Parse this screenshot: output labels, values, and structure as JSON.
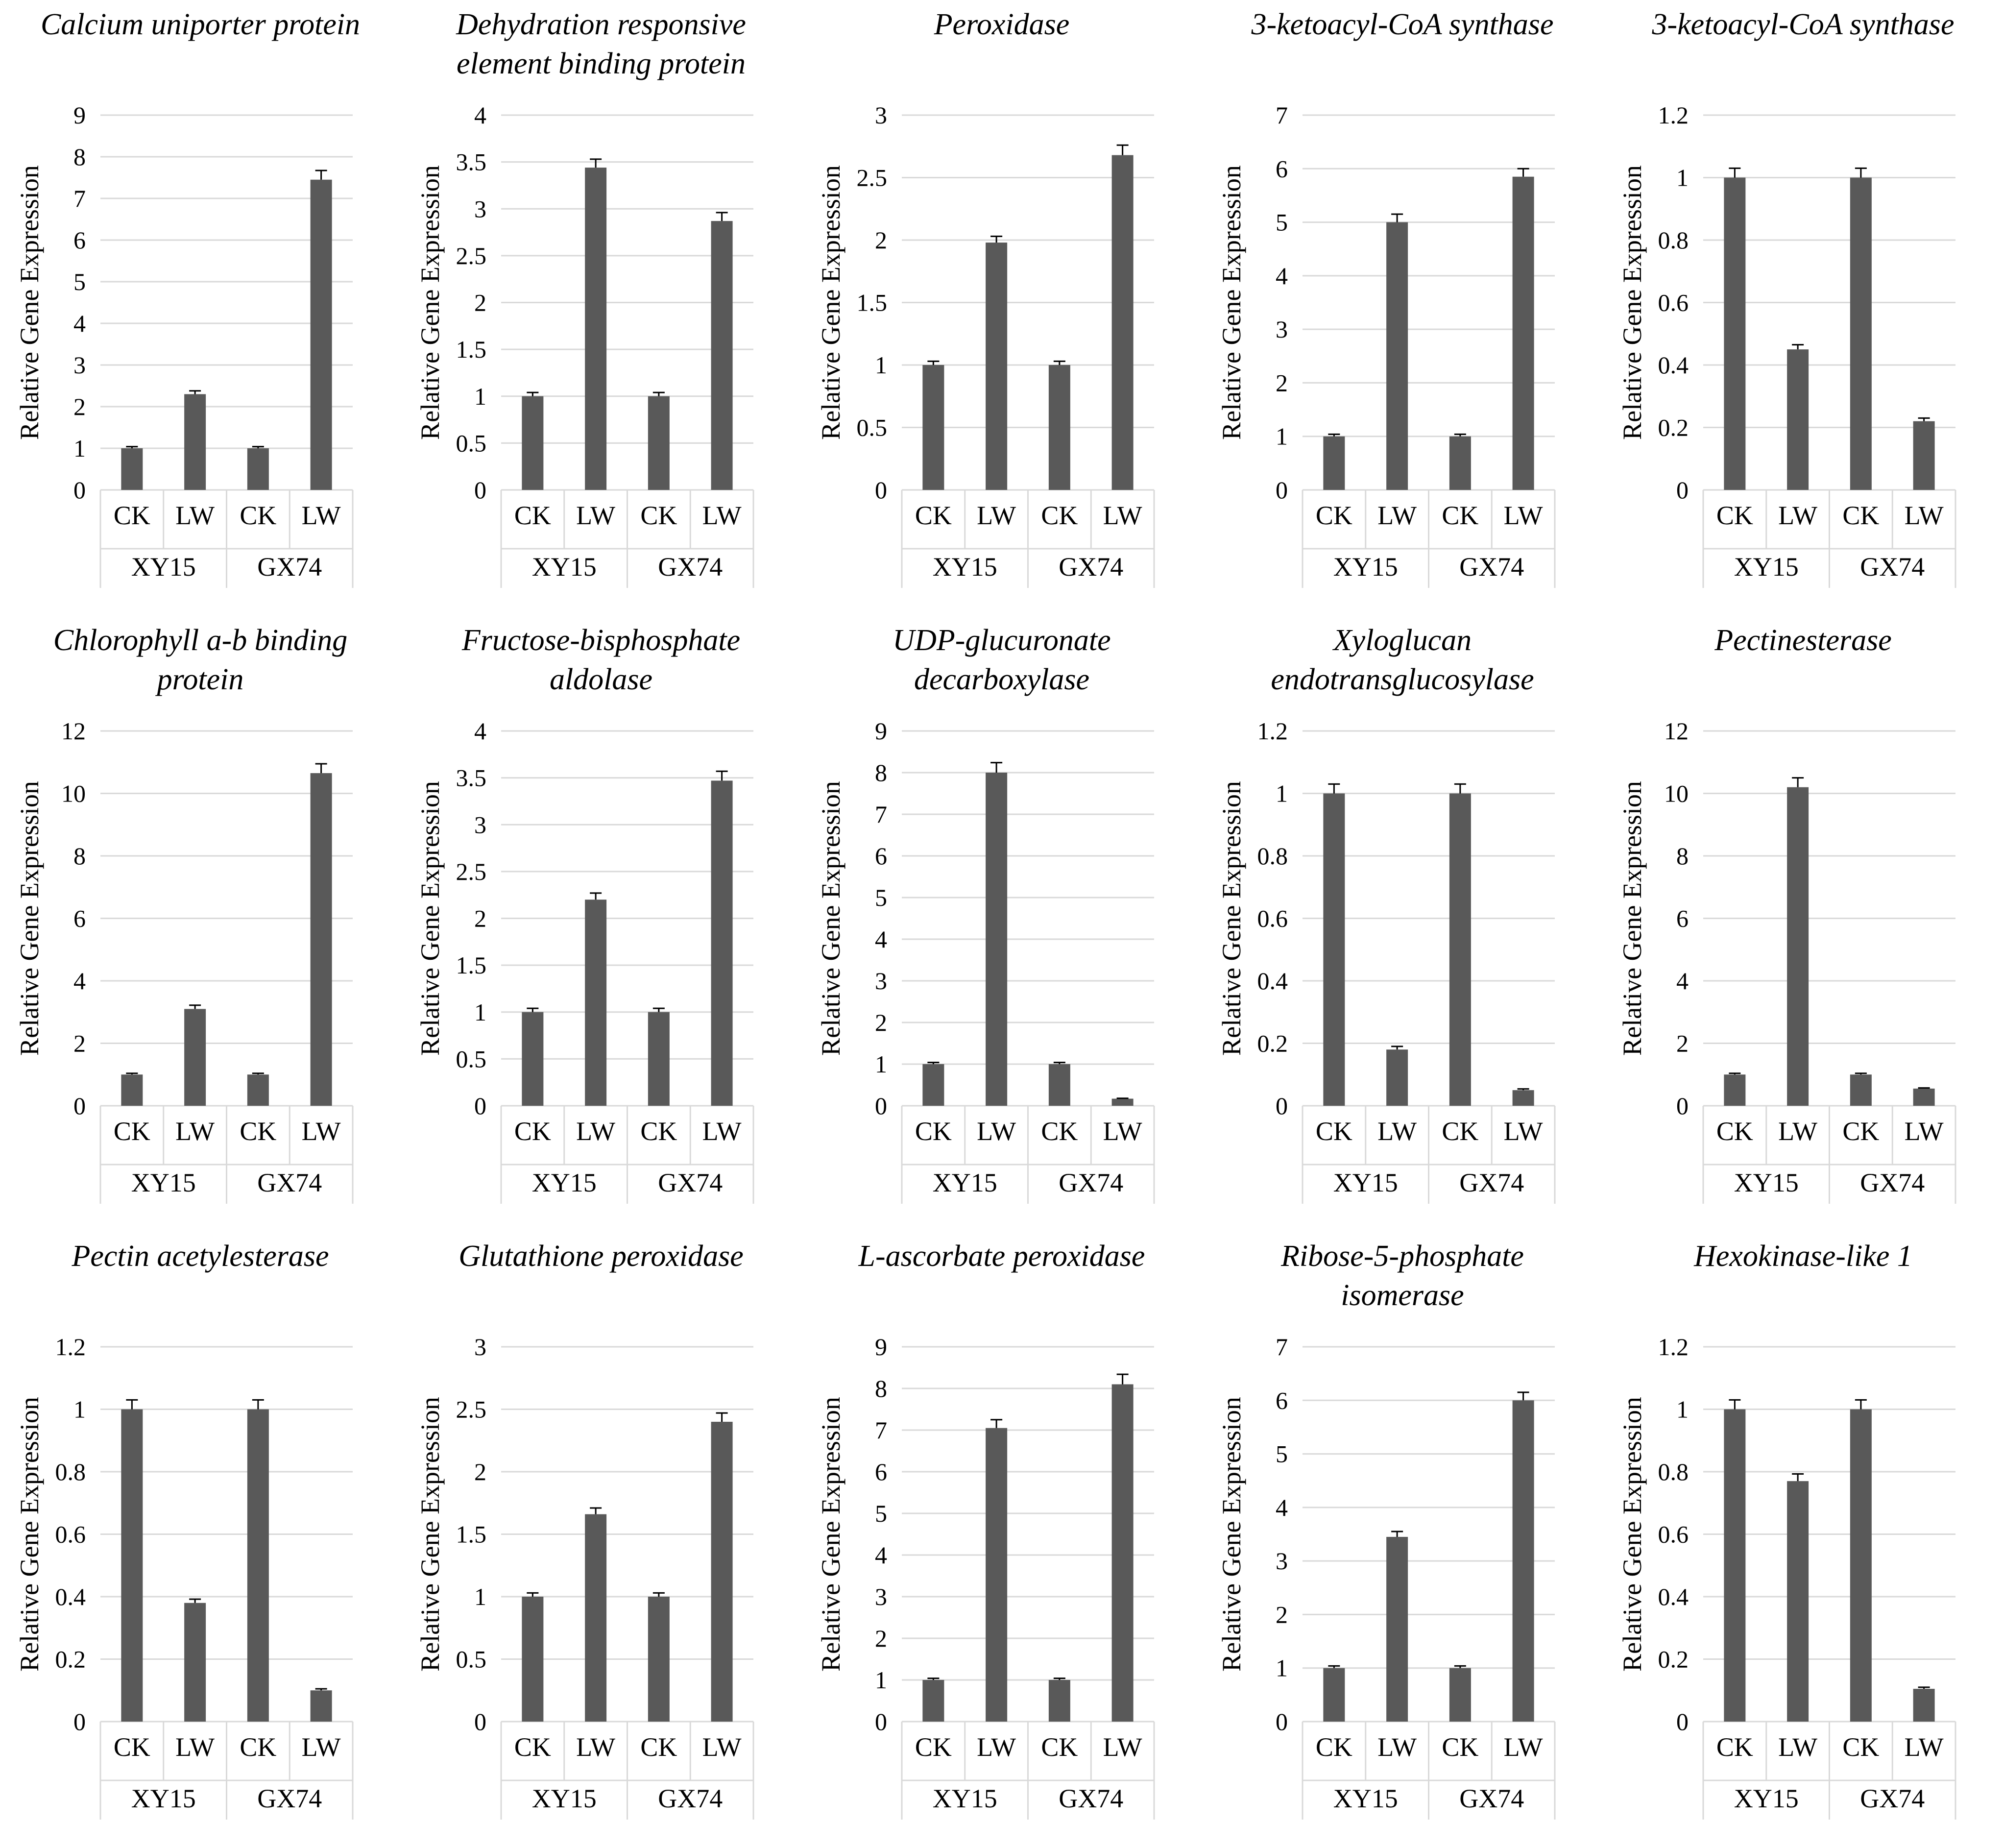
{
  "chart_data": [
    {
      "type": "bar",
      "title": "Calcium uniporter protein",
      "ylabel": "Relative Gene Expression",
      "ylim": [
        0,
        9
      ],
      "yticks": [
        0,
        1,
        2,
        3,
        4,
        5,
        6,
        7,
        8,
        9
      ],
      "groups": [
        "XY15",
        "GX74"
      ],
      "categories": [
        "CK",
        "LW",
        "CK",
        "LW"
      ],
      "values": [
        1,
        2.3,
        1,
        7.45
      ],
      "errors": [
        0.04,
        0.08,
        0.04,
        0.22
      ],
      "grid": true,
      "bar_color": "#595959"
    },
    {
      "type": "bar",
      "title": "Dehydration responsive element binding protein",
      "ylabel": "Relative Gene Expression",
      "ylim": [
        0,
        4
      ],
      "yticks": [
        0,
        0.5,
        1,
        1.5,
        2,
        2.5,
        3,
        3.5,
        4
      ],
      "groups": [
        "XY15",
        "GX74"
      ],
      "categories": [
        "CK",
        "LW",
        "CK",
        "LW"
      ],
      "values": [
        1,
        3.44,
        1,
        2.87
      ],
      "errors": [
        0.04,
        0.09,
        0.04,
        0.09
      ],
      "grid": true,
      "bar_color": "#595959"
    },
    {
      "type": "bar",
      "title": "Peroxidase",
      "ylabel": "Relative Gene Expression",
      "ylim": [
        0,
        3
      ],
      "yticks": [
        0,
        0.5,
        1,
        1.5,
        2,
        2.5,
        3
      ],
      "groups": [
        "XY15",
        "GX74"
      ],
      "categories": [
        "CK",
        "LW",
        "CK",
        "LW"
      ],
      "values": [
        1,
        1.98,
        1,
        2.68
      ],
      "errors": [
        0.03,
        0.05,
        0.03,
        0.08
      ],
      "grid": true,
      "bar_color": "#595959"
    },
    {
      "type": "bar",
      "title": "3-ketoacyl-CoA synthase",
      "ylabel": "Relative Gene Expression",
      "ylim": [
        0,
        7
      ],
      "yticks": [
        0,
        1,
        2,
        3,
        4,
        5,
        6,
        7
      ],
      "groups": [
        "XY15",
        "GX74"
      ],
      "categories": [
        "CK",
        "LW",
        "CK",
        "LW"
      ],
      "values": [
        1,
        5,
        1,
        5.85
      ],
      "errors": [
        0.04,
        0.15,
        0.04,
        0.15
      ],
      "grid": true,
      "bar_color": "#595959"
    },
    {
      "type": "bar",
      "title": "3-ketoacyl-CoA synthase",
      "ylabel": "Relative Gene Expression",
      "ylim": [
        0,
        1.2
      ],
      "yticks": [
        0,
        0.2,
        0.4,
        0.6,
        0.8,
        1,
        1.2
      ],
      "groups": [
        "XY15",
        "GX74"
      ],
      "categories": [
        "CK",
        "LW",
        "CK",
        "LW"
      ],
      "values": [
        1,
        0.45,
        1,
        0.22
      ],
      "errors": [
        0.03,
        0.015,
        0.03,
        0.01
      ],
      "grid": true,
      "bar_color": "#595959"
    },
    {
      "type": "bar",
      "title": "Chlorophyll a-b binding protein",
      "ylabel": "Relative Gene Expression",
      "ylim": [
        0,
        12
      ],
      "yticks": [
        0,
        2,
        4,
        6,
        8,
        10,
        12
      ],
      "groups": [
        "XY15",
        "GX74"
      ],
      "categories": [
        "CK",
        "LW",
        "CK",
        "LW"
      ],
      "values": [
        1,
        3.1,
        1,
        10.65
      ],
      "errors": [
        0.04,
        0.12,
        0.04,
        0.3
      ],
      "grid": true,
      "bar_color": "#595959"
    },
    {
      "type": "bar",
      "title": "Fructose-bisphosphate aldolase",
      "ylabel": "Relative Gene Expression",
      "ylim": [
        0,
        4
      ],
      "yticks": [
        0,
        0.5,
        1,
        1.5,
        2,
        2.5,
        3,
        3.5,
        4
      ],
      "groups": [
        "XY15",
        "GX74"
      ],
      "categories": [
        "CK",
        "LW",
        "CK",
        "LW"
      ],
      "values": [
        1,
        2.2,
        1,
        3.47
      ],
      "errors": [
        0.04,
        0.07,
        0.04,
        0.1
      ],
      "grid": true,
      "bar_color": "#595959"
    },
    {
      "type": "bar",
      "title": "UDP-glucuronate decarboxylase",
      "ylabel": "Relative Gene Expression",
      "ylim": [
        0,
        9
      ],
      "yticks": [
        0,
        1,
        2,
        3,
        4,
        5,
        6,
        7,
        8,
        9
      ],
      "groups": [
        "XY15",
        "GX74"
      ],
      "categories": [
        "CK",
        "LW",
        "CK",
        "LW"
      ],
      "values": [
        1,
        8,
        1,
        0.17
      ],
      "errors": [
        0.04,
        0.24,
        0.04,
        0.01
      ],
      "grid": true,
      "bar_color": "#595959"
    },
    {
      "type": "bar",
      "title": "Xyloglucan endotransglucosylase",
      "ylabel": "Relative Gene Expression",
      "ylim": [
        0,
        1.2
      ],
      "yticks": [
        0,
        0.2,
        0.4,
        0.6,
        0.8,
        1,
        1.2
      ],
      "groups": [
        "XY15",
        "GX74"
      ],
      "categories": [
        "CK",
        "LW",
        "CK",
        "LW"
      ],
      "values": [
        1,
        0.18,
        1,
        0.05
      ],
      "errors": [
        0.03,
        0.01,
        0.03,
        0.004
      ],
      "grid": true,
      "bar_color": "#595959"
    },
    {
      "type": "bar",
      "title": "Pectinesterase",
      "ylabel": "Relative Gene Expression",
      "ylim": [
        0,
        12
      ],
      "yticks": [
        0,
        2,
        4,
        6,
        8,
        10,
        12
      ],
      "groups": [
        "XY15",
        "GX74"
      ],
      "categories": [
        "CK",
        "LW",
        "CK",
        "LW"
      ],
      "values": [
        1,
        10.2,
        1,
        0.55
      ],
      "errors": [
        0.04,
        0.3,
        0.04,
        0.02
      ],
      "grid": true,
      "bar_color": "#595959"
    },
    {
      "type": "bar",
      "title": "Pectin acetylesterase",
      "ylabel": "Relative Gene Expression",
      "ylim": [
        0,
        1.2
      ],
      "yticks": [
        0,
        0.2,
        0.4,
        0.6,
        0.8,
        1,
        1.2
      ],
      "groups": [
        "XY15",
        "GX74"
      ],
      "categories": [
        "CK",
        "LW",
        "CK",
        "LW"
      ],
      "values": [
        1,
        0.38,
        1,
        0.1
      ],
      "errors": [
        0.03,
        0.012,
        0.03,
        0.005
      ],
      "grid": true,
      "bar_color": "#595959"
    },
    {
      "type": "bar",
      "title": "Glutathione peroxidase",
      "ylabel": "Relative Gene Expression",
      "ylim": [
        0,
        3
      ],
      "yticks": [
        0,
        0.5,
        1,
        1.5,
        2,
        2.5,
        3
      ],
      "groups": [
        "XY15",
        "GX74"
      ],
      "categories": [
        "CK",
        "LW",
        "CK",
        "LW"
      ],
      "values": [
        1,
        1.66,
        1,
        2.4
      ],
      "errors": [
        0.03,
        0.05,
        0.03,
        0.07
      ],
      "grid": true,
      "bar_color": "#595959"
    },
    {
      "type": "bar",
      "title": "L-ascorbate peroxidase",
      "ylabel": "Relative Gene Expression",
      "ylim": [
        0,
        9
      ],
      "yticks": [
        0,
        1,
        2,
        3,
        4,
        5,
        6,
        7,
        8,
        9
      ],
      "groups": [
        "XY15",
        "GX74"
      ],
      "categories": [
        "CK",
        "LW",
        "CK",
        "LW"
      ],
      "values": [
        1,
        7.05,
        1,
        8.1
      ],
      "errors": [
        0.04,
        0.2,
        0.04,
        0.24
      ],
      "grid": true,
      "bar_color": "#595959"
    },
    {
      "type": "bar",
      "title": "Ribose-5-phosphate isomerase",
      "ylabel": "Relative Gene Expression",
      "ylim": [
        0,
        7
      ],
      "yticks": [
        0,
        1,
        2,
        3,
        4,
        5,
        6,
        7
      ],
      "groups": [
        "XY15",
        "GX74"
      ],
      "categories": [
        "CK",
        "LW",
        "CK",
        "LW"
      ],
      "values": [
        1,
        3.45,
        1,
        6
      ],
      "errors": [
        0.04,
        0.1,
        0.04,
        0.15
      ],
      "grid": true,
      "bar_color": "#595959"
    },
    {
      "type": "bar",
      "title": "Hexokinase-like 1",
      "ylabel": "Relative Gene Expression",
      "ylim": [
        0,
        1.2
      ],
      "yticks": [
        0,
        0.2,
        0.4,
        0.6,
        0.8,
        1,
        1.2
      ],
      "groups": [
        "XY15",
        "GX74"
      ],
      "categories": [
        "CK",
        "LW",
        "CK",
        "LW"
      ],
      "values": [
        1,
        0.77,
        1,
        0.105
      ],
      "errors": [
        0.03,
        0.023,
        0.03,
        0.005
      ],
      "grid": true,
      "bar_color": "#595959"
    }
  ]
}
